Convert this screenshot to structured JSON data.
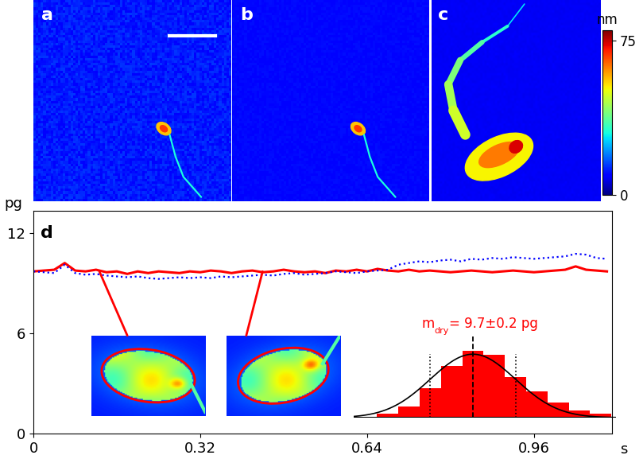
{
  "panel_labels": [
    "a",
    "b",
    "c",
    "d"
  ],
  "colorbar": {
    "label": "nm",
    "range": [
      0,
      80
    ],
    "ticks": [
      0,
      75
    ]
  },
  "chart_data": {
    "type": "line",
    "x_label": "s",
    "y_label": "pg",
    "xlim": [
      0,
      1.11
    ],
    "xticks": [
      0,
      0.32,
      0.64,
      0.96
    ],
    "ylim": [
      0,
      13.3
    ],
    "yticks": [
      0,
      6,
      12
    ],
    "x": [
      0,
      0.02,
      0.04,
      0.06,
      0.08,
      0.1,
      0.12,
      0.14,
      0.16,
      0.18,
      0.2,
      0.22,
      0.24,
      0.26,
      0.28,
      0.3,
      0.32,
      0.34,
      0.36,
      0.38,
      0.4,
      0.42,
      0.44,
      0.46,
      0.48,
      0.5,
      0.52,
      0.54,
      0.56,
      0.58,
      0.6,
      0.62,
      0.64,
      0.66,
      0.68,
      0.7,
      0.72,
      0.74,
      0.76,
      0.78,
      0.8,
      0.82,
      0.84,
      0.86,
      0.88,
      0.9,
      0.92,
      0.94,
      0.96,
      0.98,
      1.0,
      1.02,
      1.04,
      1.06,
      1.08,
      1.1
    ],
    "series": [
      {
        "color": "#ff0000",
        "line_style": "solid",
        "values": [
          9.7,
          9.75,
          9.8,
          10.2,
          9.75,
          9.7,
          9.8,
          9.65,
          9.7,
          9.55,
          9.7,
          9.6,
          9.7,
          9.65,
          9.6,
          9.7,
          9.65,
          9.75,
          9.7,
          9.6,
          9.7,
          9.75,
          9.65,
          9.7,
          9.8,
          9.7,
          9.65,
          9.7,
          9.6,
          9.75,
          9.7,
          9.8,
          9.7,
          9.85,
          9.75,
          9.7,
          9.8,
          9.7,
          9.75,
          9.7,
          9.65,
          9.7,
          9.75,
          9.7,
          9.65,
          9.7,
          9.75,
          9.7,
          9.65,
          9.7,
          9.75,
          9.8,
          10.0,
          9.8,
          9.75,
          9.7
        ]
      },
      {
        "color": "#0000ff",
        "line_style": "dotted",
        "values": [
          9.7,
          9.65,
          9.6,
          10.1,
          9.6,
          9.5,
          9.55,
          9.45,
          9.4,
          9.35,
          9.4,
          9.3,
          9.25,
          9.3,
          9.35,
          9.3,
          9.35,
          9.3,
          9.4,
          9.35,
          9.4,
          9.45,
          9.5,
          9.45,
          9.55,
          9.6,
          9.5,
          9.55,
          9.6,
          9.7,
          9.65,
          9.6,
          9.7,
          9.75,
          9.8,
          10.1,
          10.2,
          10.3,
          10.25,
          10.35,
          10.4,
          10.3,
          10.45,
          10.4,
          10.5,
          10.45,
          10.55,
          10.5,
          10.45,
          10.5,
          10.55,
          10.6,
          10.75,
          10.7,
          10.5,
          10.45
        ]
      }
    ],
    "inset_histogram": {
      "type": "histogram",
      "bins": [
        9.25,
        9.35,
        9.45,
        9.55,
        9.65,
        9.75,
        9.85,
        9.95,
        10.05,
        10.15,
        10.25,
        10.35
      ],
      "counts": [
        1,
        3,
        8,
        14,
        18,
        17,
        11,
        7,
        4,
        2,
        1
      ],
      "color": "#ff0000",
      "mean": 9.7,
      "sd": 0.2,
      "annotation": {
        "symbol": "m",
        "subscript": "dry",
        "text": "= 9.7±0.2 pg",
        "color": "#ff0000"
      }
    }
  }
}
